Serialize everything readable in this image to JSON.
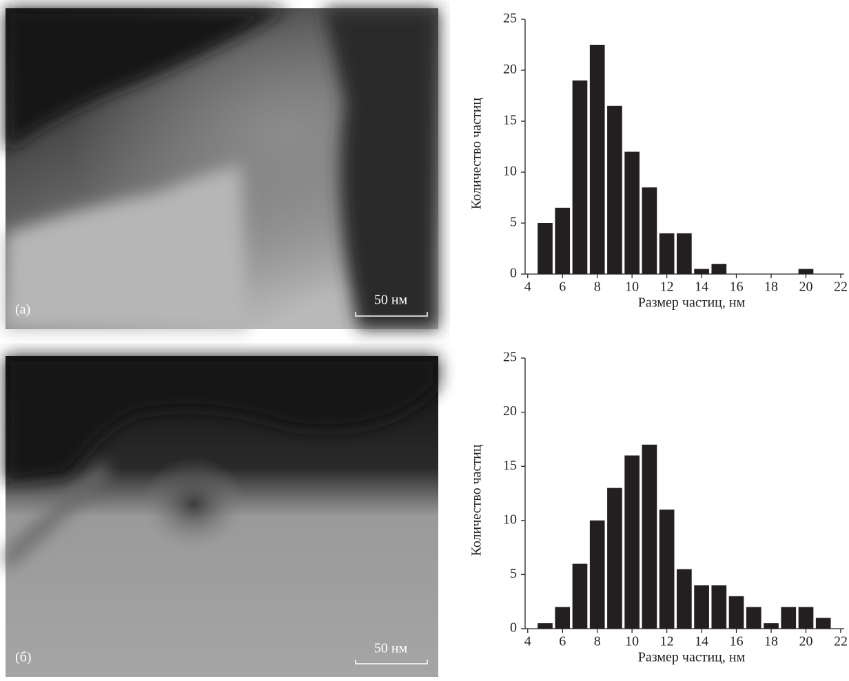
{
  "images": [
    {
      "label": "(a)",
      "scale_bar": "50 нм"
    },
    {
      "label": "(б)",
      "scale_bar": "50 нм"
    }
  ],
  "chart_data": [
    {
      "type": "bar",
      "xlabel": "Размер частиц, нм",
      "ylabel": "Количество частиц",
      "color": "#231f20",
      "x": [
        5,
        6,
        7,
        8,
        9,
        10,
        11,
        12,
        13,
        14,
        15,
        20
      ],
      "values": [
        5,
        6.5,
        19,
        22.5,
        16.5,
        12,
        8.5,
        4,
        4,
        0.5,
        1,
        0.5
      ],
      "xlim": [
        3.85,
        22.2
      ],
      "xticks": [
        4,
        6,
        8,
        10,
        12,
        14,
        16,
        18,
        20,
        22
      ],
      "ylim": [
        0,
        25
      ],
      "yticks": [
        0,
        5,
        10,
        15,
        20,
        25
      ]
    },
    {
      "type": "bar",
      "xlabel": "Размер частиц, нм",
      "ylabel": "Количество частиц",
      "color": "#231f20",
      "x": [
        5,
        6,
        7,
        8,
        9,
        10,
        11,
        12,
        13,
        14,
        15,
        16,
        17,
        18,
        19,
        20,
        21
      ],
      "values": [
        0.5,
        2,
        6,
        10,
        13,
        16,
        17,
        11,
        5.5,
        4,
        4,
        3,
        2,
        0.5,
        2,
        2,
        1
      ],
      "xlim": [
        3.85,
        22.2
      ],
      "xticks": [
        4,
        6,
        8,
        10,
        12,
        14,
        16,
        18,
        20,
        22
      ],
      "ylim": [
        0,
        25
      ],
      "yticks": [
        0,
        5,
        10,
        15,
        20,
        25
      ]
    }
  ]
}
